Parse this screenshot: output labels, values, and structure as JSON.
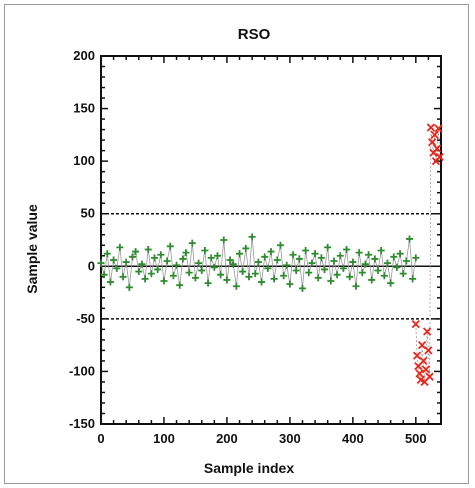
{
  "chart_data": {
    "type": "scatter",
    "title": "RSO",
    "xlabel": "Sample index",
    "ylabel": "Sample value",
    "xlim": [
      0,
      540
    ],
    "ylim": [
      -150,
      200
    ],
    "x_ticks": [
      0,
      100,
      200,
      300,
      400,
      500
    ],
    "y_ticks": [
      -150,
      -100,
      -50,
      0,
      50,
      100,
      150,
      200
    ],
    "x_tick_labels": [
      "0",
      "100",
      "200",
      "300",
      "400",
      "500"
    ],
    "y_tick_labels": [
      "-150",
      "-100",
      "-50",
      "0",
      "50",
      "100",
      "150",
      "200"
    ],
    "threshold_lines": [
      50,
      -50
    ],
    "zero_line": 0,
    "grid": false,
    "colors": {
      "normal": "#2e8b2e",
      "anomaly": "#e8281e",
      "connector": "#999999",
      "threshold": "#111111"
    },
    "series": [
      {
        "marker": "plus",
        "color": "#2e8b2e",
        "note_range": "indices 0-500, values roughly -25 to 28",
        "x": [
          0,
          5,
          10,
          15,
          20,
          25,
          30,
          35,
          40,
          45,
          50,
          55,
          60,
          65,
          70,
          75,
          80,
          85,
          90,
          95,
          100,
          105,
          110,
          115,
          120,
          125,
          130,
          135,
          140,
          145,
          150,
          155,
          160,
          165,
          170,
          175,
          180,
          185,
          190,
          195,
          200,
          205,
          210,
          215,
          220,
          225,
          230,
          235,
          240,
          245,
          250,
          255,
          260,
          265,
          270,
          275,
          280,
          285,
          290,
          295,
          300,
          305,
          310,
          315,
          320,
          325,
          330,
          335,
          340,
          345,
          350,
          355,
          360,
          365,
          370,
          375,
          380,
          385,
          390,
          395,
          400,
          405,
          410,
          415,
          420,
          425,
          430,
          435,
          440,
          445,
          450,
          455,
          460,
          465,
          470,
          475,
          480,
          485,
          490,
          495,
          500
        ],
        "y": [
          3,
          -8,
          12,
          -15,
          6,
          -2,
          18,
          -10,
          4,
          -20,
          9,
          14,
          -5,
          2,
          -12,
          16,
          -7,
          8,
          -3,
          11,
          -14,
          5,
          19,
          -9,
          1,
          -18,
          7,
          13,
          -6,
          22,
          -11,
          3,
          -4,
          15,
          -16,
          8,
          -1,
          10,
          -8,
          25,
          -13,
          6,
          2,
          -19,
          12,
          -5,
          17,
          -10,
          28,
          -7,
          4,
          -15,
          9,
          -2,
          14,
          -12,
          6,
          20,
          -9,
          1,
          -17,
          11,
          -4,
          7,
          -21,
          15,
          -6,
          3,
          12,
          -11,
          8,
          -3,
          18,
          -14,
          5,
          -8,
          10,
          -2,
          16,
          -10,
          4,
          -19,
          13,
          -6,
          2,
          11,
          -13,
          7,
          -4,
          15,
          -9,
          3,
          -16,
          9,
          -1,
          12,
          -7,
          5,
          26,
          -12,
          8
        ]
      },
      {
        "marker": "x",
        "color": "#e8281e",
        "note_range": "indices 500-540, values near -100 and near +110",
        "x": [
          500,
          502,
          504,
          506,
          508,
          510,
          512,
          514,
          516,
          518,
          520,
          522,
          524,
          526,
          528,
          530,
          532,
          534,
          536,
          538
        ],
        "y": [
          -55,
          -85,
          -95,
          -102,
          -108,
          -75,
          -90,
          -110,
          -98,
          -62,
          -80,
          -105,
          132,
          118,
          108,
          125,
          100,
          112,
          131,
          104
        ]
      }
    ]
  }
}
